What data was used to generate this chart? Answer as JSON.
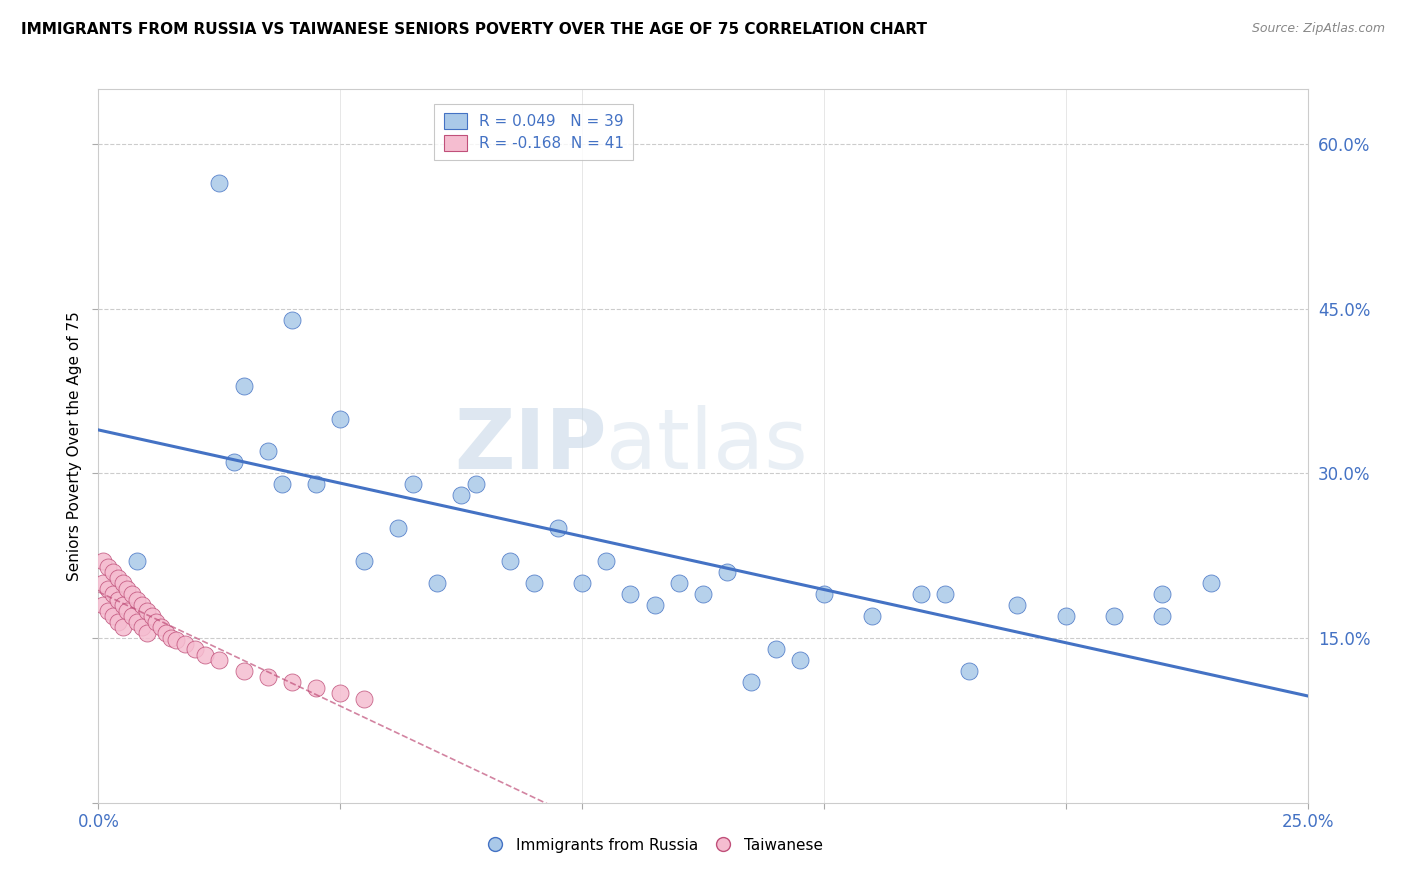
{
  "title": "IMMIGRANTS FROM RUSSIA VS TAIWANESE SENIORS POVERTY OVER THE AGE OF 75 CORRELATION CHART",
  "source": "Source: ZipAtlas.com",
  "ylabel": "Seniors Poverty Over the Age of 75",
  "xmin": 0.0,
  "xmax": 0.25,
  "ymin": 0.0,
  "ymax": 0.65,
  "color_blue": "#aac9e8",
  "color_pink": "#f5bdd0",
  "line_blue": "#4472c4",
  "line_pink": "#c0507a",
  "watermark_zip": "ZIP",
  "watermark_atlas": "atlas",
  "russia_x": [
    0.025,
    0.008,
    0.04,
    0.03,
    0.035,
    0.028,
    0.038,
    0.045,
    0.05,
    0.055,
    0.062,
    0.065,
    0.07,
    0.075,
    0.078,
    0.085,
    0.09,
    0.095,
    0.1,
    0.105,
    0.11,
    0.115,
    0.12,
    0.125,
    0.13,
    0.15,
    0.16,
    0.17,
    0.175,
    0.18,
    0.19,
    0.2,
    0.21,
    0.22,
    0.22,
    0.23,
    0.14,
    0.145,
    0.135
  ],
  "russia_y": [
    0.565,
    0.22,
    0.44,
    0.38,
    0.32,
    0.31,
    0.29,
    0.29,
    0.35,
    0.22,
    0.25,
    0.29,
    0.2,
    0.28,
    0.29,
    0.22,
    0.2,
    0.25,
    0.2,
    0.22,
    0.19,
    0.18,
    0.2,
    0.19,
    0.21,
    0.19,
    0.17,
    0.19,
    0.19,
    0.12,
    0.18,
    0.17,
    0.17,
    0.17,
    0.19,
    0.2,
    0.14,
    0.13,
    0.11
  ],
  "taiwan_x": [
    0.001,
    0.001,
    0.001,
    0.002,
    0.002,
    0.002,
    0.003,
    0.003,
    0.003,
    0.004,
    0.004,
    0.004,
    0.005,
    0.005,
    0.005,
    0.006,
    0.006,
    0.007,
    0.007,
    0.008,
    0.008,
    0.009,
    0.009,
    0.01,
    0.01,
    0.011,
    0.012,
    0.013,
    0.014,
    0.015,
    0.016,
    0.018,
    0.02,
    0.022,
    0.025,
    0.03,
    0.035,
    0.04,
    0.045,
    0.05,
    0.055
  ],
  "taiwan_y": [
    0.22,
    0.2,
    0.18,
    0.215,
    0.195,
    0.175,
    0.21,
    0.19,
    0.17,
    0.205,
    0.185,
    0.165,
    0.2,
    0.18,
    0.16,
    0.195,
    0.175,
    0.19,
    0.17,
    0.185,
    0.165,
    0.18,
    0.16,
    0.175,
    0.155,
    0.17,
    0.165,
    0.16,
    0.155,
    0.15,
    0.148,
    0.145,
    0.14,
    0.135,
    0.13,
    0.12,
    0.115,
    0.11,
    0.105,
    0.1,
    0.095
  ],
  "legend_entries": [
    {
      "label": "R = 0.049  N = 39",
      "color": "#aac9e8",
      "edge": "#4472c4"
    },
    {
      "label": "R = -0.168  N = 41",
      "color": "#f5bdd0",
      "edge": "#c0507a"
    }
  ],
  "bottom_legend": [
    {
      "label": "Immigrants from Russia",
      "color": "#aac9e8",
      "edge": "#4472c4"
    },
    {
      "label": "Taiwanese",
      "color": "#f5bdd0",
      "edge": "#c0507a"
    }
  ]
}
